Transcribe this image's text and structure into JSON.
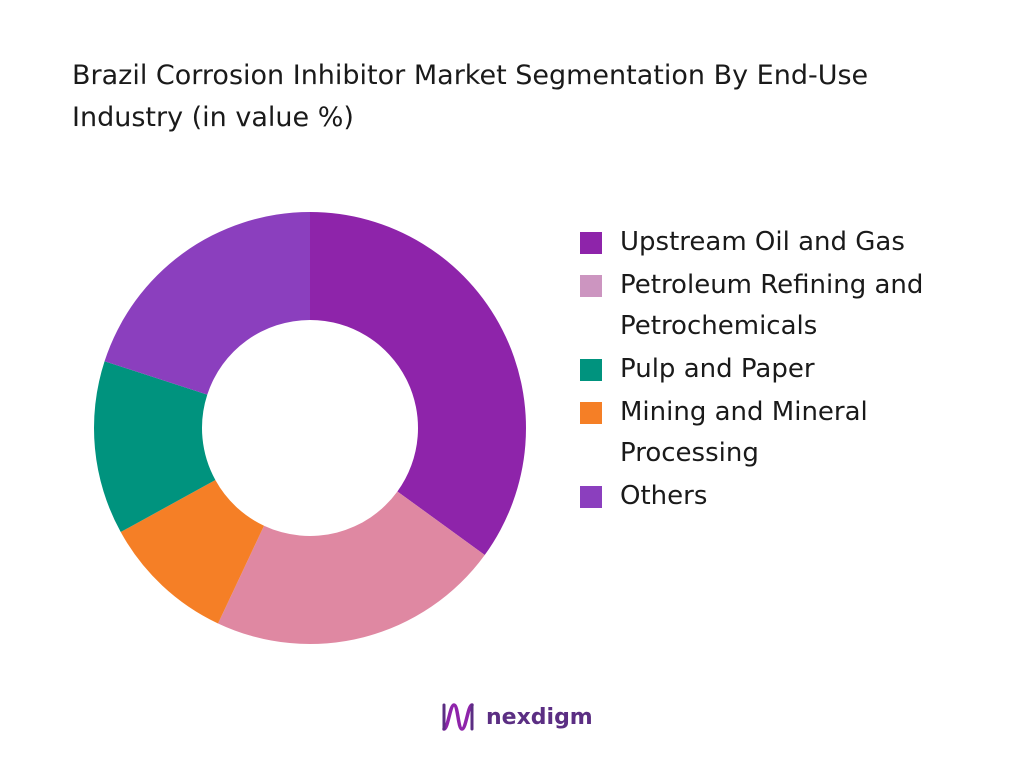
{
  "chart_data": {
    "type": "pie",
    "title": "Brazil Corrosion Inhibitor Market Segmentation By End-Use Industry (in value %)",
    "categories": [
      "Upstream Oil and Gas",
      "Petroleum Refining and Petrochemicals",
      "Pulp and Paper",
      "Mining and Mineral Processing",
      "Others"
    ],
    "values": [
      35,
      22,
      13,
      10,
      20
    ],
    "slice_order": [
      "Upstream Oil and Gas",
      "Petroleum Refining and Petrochemicals",
      "Mining and Mineral Processing",
      "Pulp and Paper",
      "Others"
    ],
    "colors": {
      "Upstream Oil and Gas": "#8e24aa",
      "Petroleum Refining and Petrochemicals": "#df88a2",
      "Pulp and Paper": "#00937e",
      "Mining and Mineral Processing": "#f57f26",
      "Others": "#8b3fbe"
    },
    "legend_swatch_colors": [
      "#8e24aa",
      "#cc95c0",
      "#00937e",
      "#f57f26",
      "#8b3fbe"
    ],
    "donut": true,
    "legend_position": "right"
  },
  "legend": {
    "items": [
      {
        "label": "Upstream Oil and Gas",
        "color": "#8e24aa"
      },
      {
        "label": "Petroleum Refining and Petrochemicals",
        "color": "#cc95c0"
      },
      {
        "label": "Pulp and Paper",
        "color": "#00937e"
      },
      {
        "label": "Mining and Mineral Processing",
        "color": "#f57f26"
      },
      {
        "label": "Others",
        "color": "#8b3fbe"
      }
    ]
  },
  "logo": {
    "text": "nexdigm",
    "icon": "nexdigm-logo-icon",
    "color": "#5b2e83"
  }
}
